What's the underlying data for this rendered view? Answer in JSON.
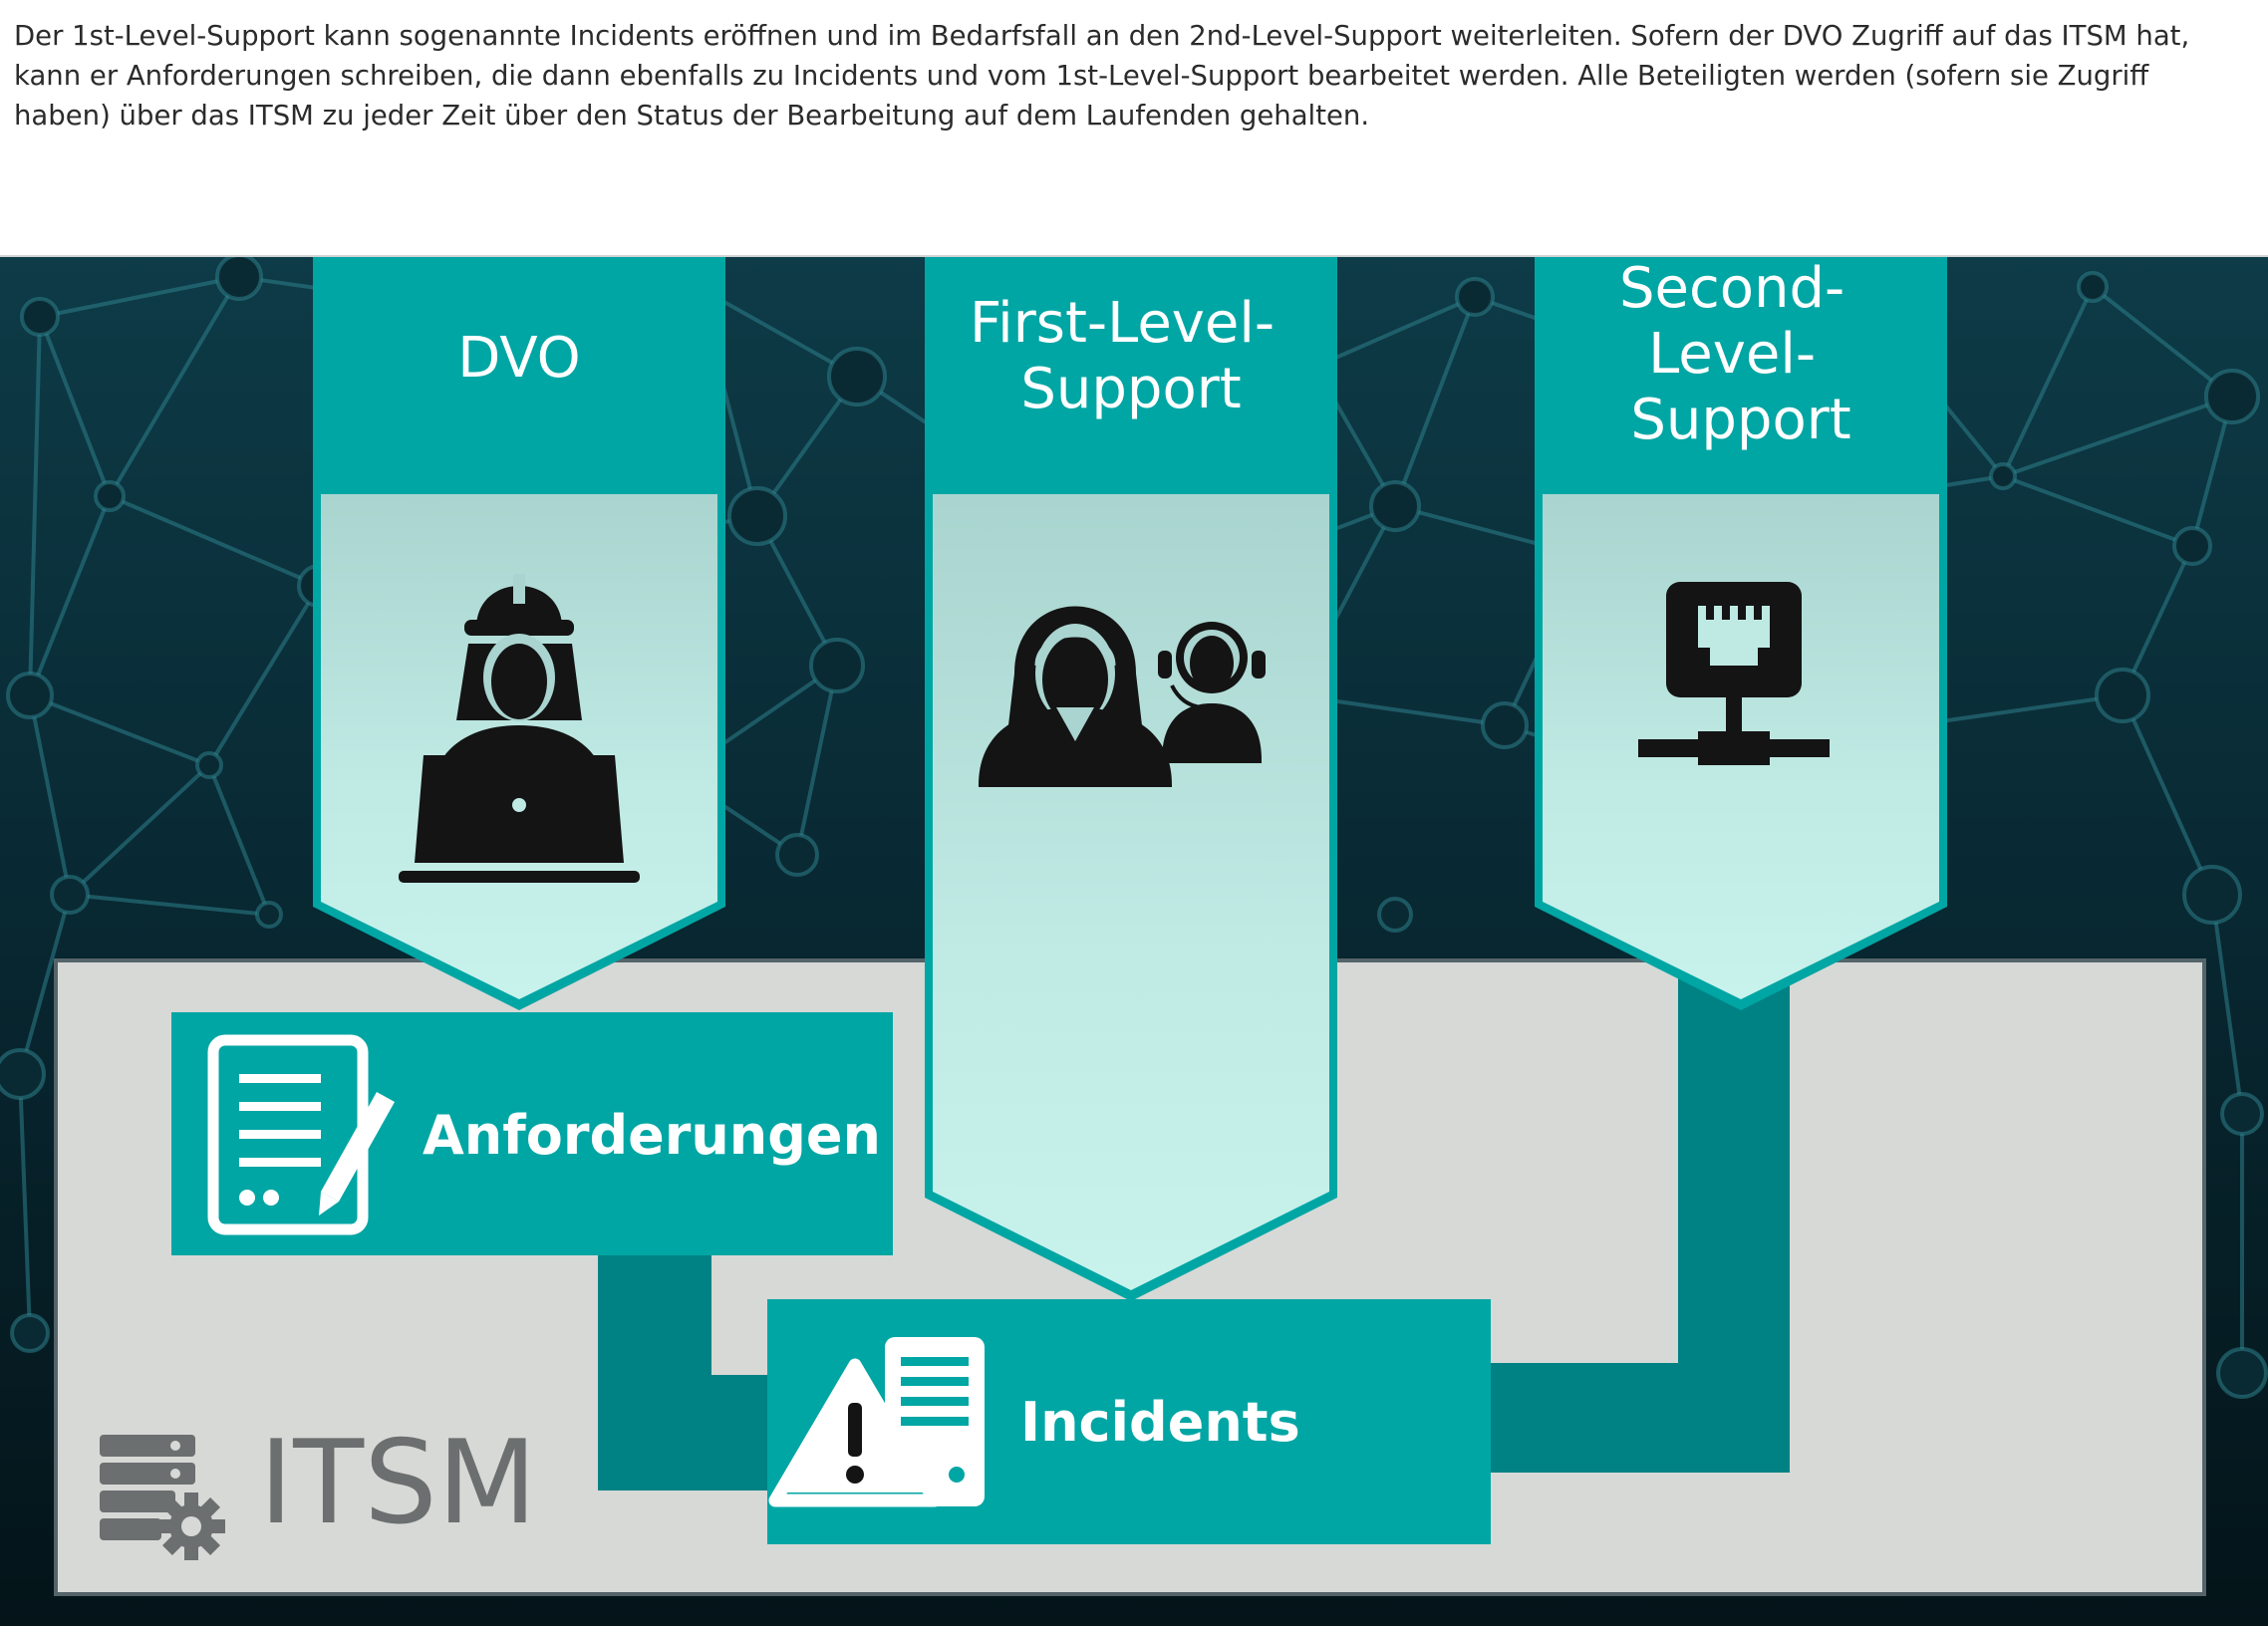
{
  "intro_text": "Der 1st-Level-Support kann sogenannte Incidents eröffnen und im Bedarfsfall an den 2nd-Level-Support weiterleiten. Sofern der DVO Zugriff auf das ITSM hat, kann er Anforderungen schreiben, die dann ebenfalls zu Incidents und vom 1st-Level-Support bearbeitet werden. Alle Beteiligten werden (sofern sie Zugriff haben) über das ITSM zu jeder Zeit über den Status der Bearbeitung auf dem Laufenden gehalten.",
  "roles": {
    "dvo": {
      "label_lines": [
        "DVO"
      ],
      "icon": "worker-with-laptop-icon"
    },
    "first_level": {
      "label_lines": [
        "First-Level-",
        "Support"
      ],
      "icon": "support-agents-headset-icon"
    },
    "second_level": {
      "label_lines": [
        "Second-",
        "Level-",
        "Support"
      ],
      "icon": "network-server-icon"
    }
  },
  "process": {
    "anforderungen": {
      "label": "Anforderungen",
      "icon": "document-edit-icon"
    },
    "incidents": {
      "label": "Incidents",
      "icon": "warning-server-icon"
    }
  },
  "itsm": {
    "label": "ITSM",
    "icon": "server-gear-icon"
  },
  "colors": {
    "teal": "#00a6a4",
    "teal_dark": "#008284",
    "mint_light": "#bfeee6",
    "panel_grey": "#d7d9d6",
    "background_dark": "#0a2a33",
    "itsm_grey": "#6c6f70"
  }
}
